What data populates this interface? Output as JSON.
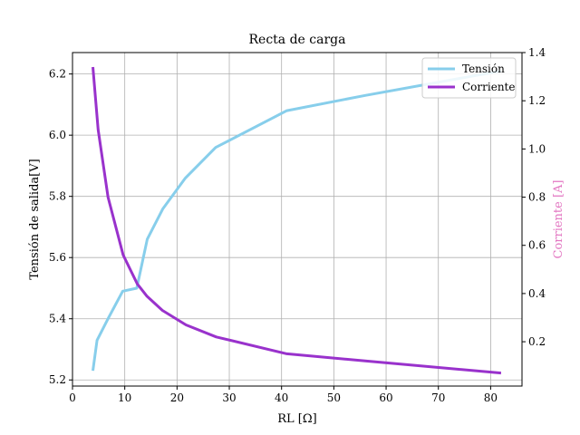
{
  "chart_data": {
    "type": "line",
    "title": "Recta de carga",
    "xlabel": "RL [Ω]",
    "ylabel_left": "Tensión de salida[V]",
    "ylabel_right": "Corriente [A]",
    "xlim": [
      0,
      86
    ],
    "ylim_left": [
      5.18,
      6.27
    ],
    "ylim_right": [
      0.016,
      1.4
    ],
    "x_ticks": [
      0,
      10,
      20,
      30,
      40,
      50,
      60,
      70,
      80
    ],
    "y_left_ticks": [
      5.2,
      5.4,
      5.6,
      5.8,
      6.0,
      6.2
    ],
    "y_right_ticks": [
      0.2,
      0.4,
      0.6,
      0.8,
      1.0,
      1.2,
      1.4
    ],
    "grid": true,
    "legend_position": "top-right",
    "series": [
      {
        "name": "Tensión",
        "axis": "left",
        "color": "#87ceeb",
        "x": [
          3.9,
          4.7,
          6.8,
          9.6,
          12.3,
          14.3,
          17.3,
          21.6,
          27.4,
          41.0,
          56.0,
          82.0
        ],
        "y": [
          5.23,
          5.33,
          5.4,
          5.49,
          5.5,
          5.66,
          5.76,
          5.86,
          5.96,
          6.08,
          6.13,
          6.21
        ]
      },
      {
        "name": "Corriente",
        "axis": "right",
        "color": "#9932cc",
        "x": [
          3.9,
          4.9,
          6.8,
          9.7,
          12.4,
          14.2,
          17.2,
          21.7,
          27.5,
          41.0,
          56.0,
          82.0
        ],
        "y": [
          1.34,
          1.08,
          0.8,
          0.56,
          0.44,
          0.39,
          0.33,
          0.27,
          0.22,
          0.15,
          0.12,
          0.07
        ]
      }
    ]
  }
}
